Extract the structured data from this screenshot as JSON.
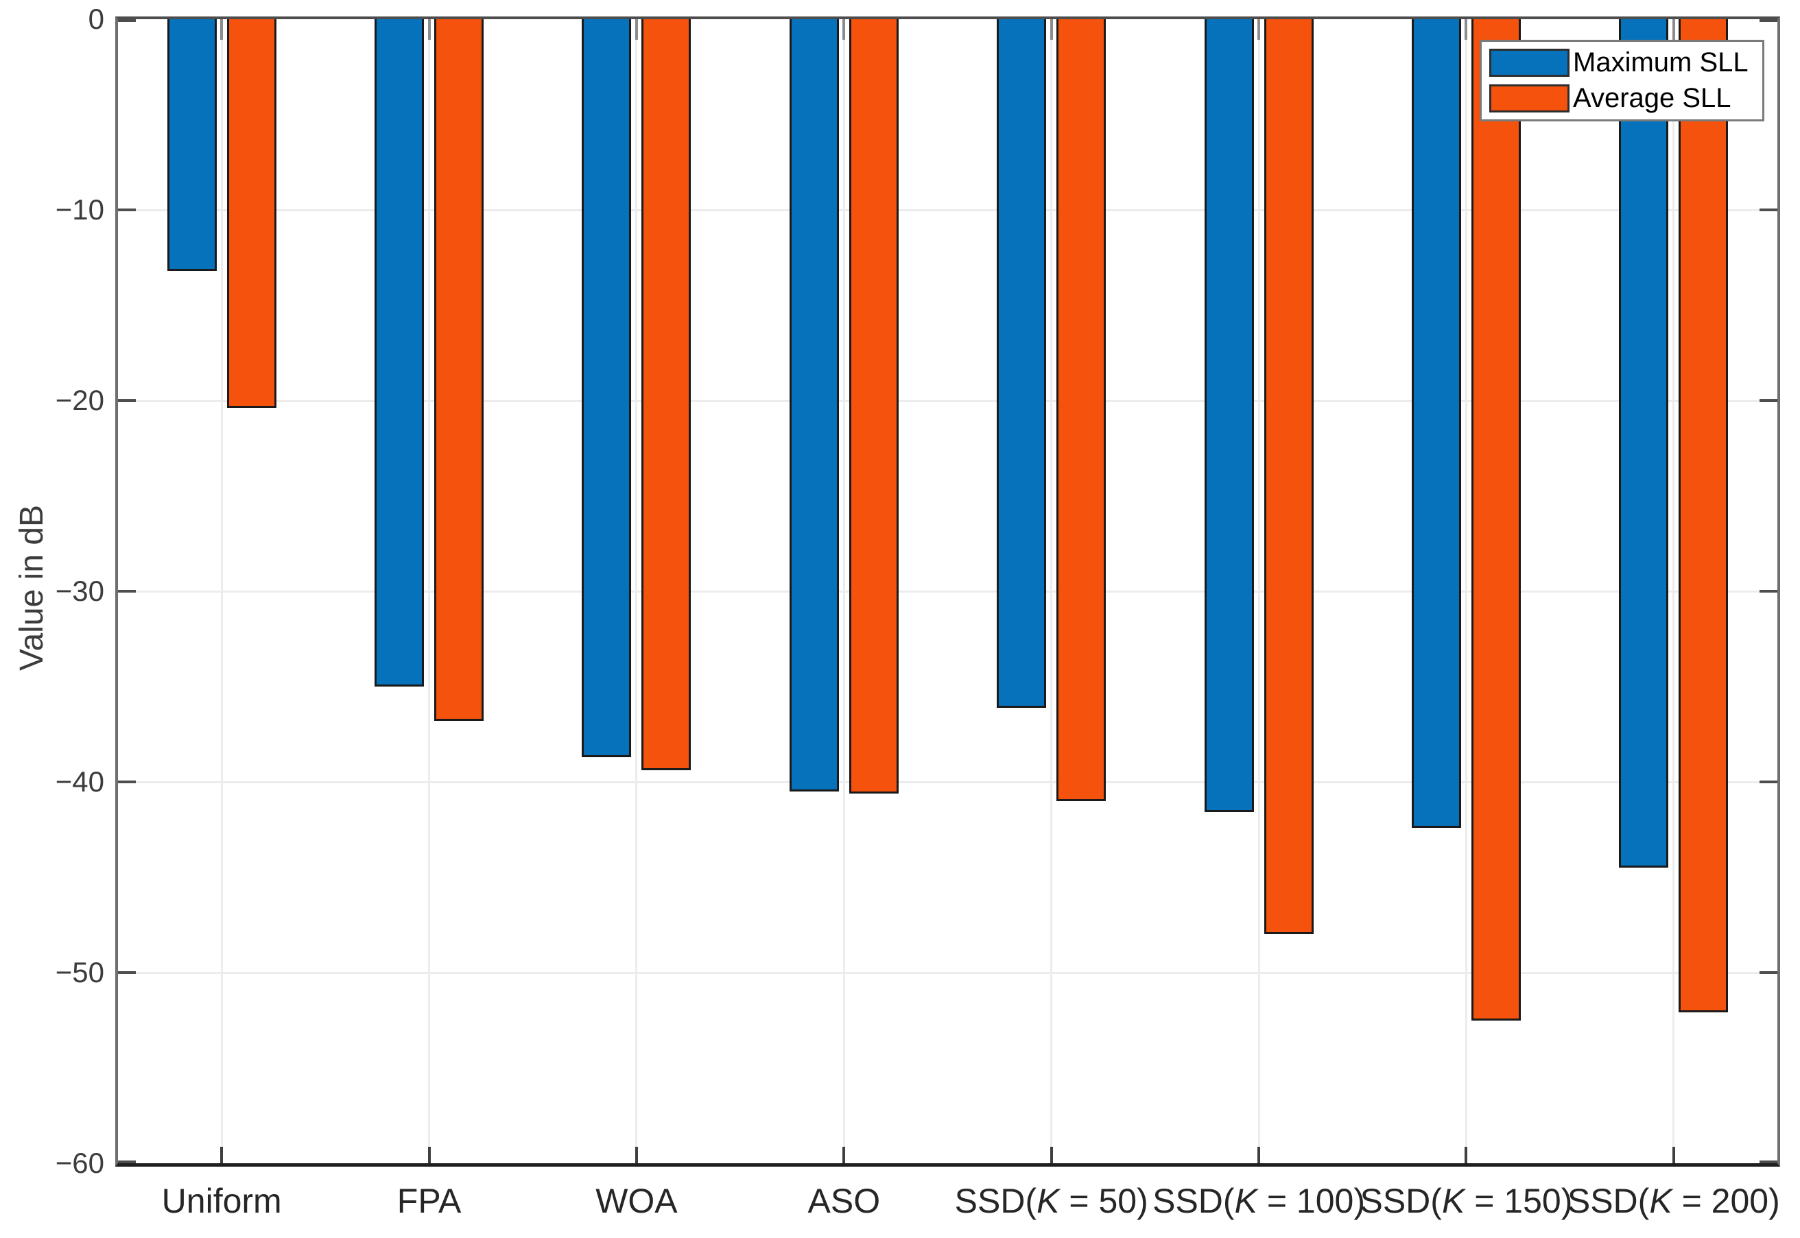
{
  "figure": {
    "background": "#ffffff"
  },
  "chart_data": {
    "type": "bar",
    "title": "",
    "xlabel": "",
    "ylabel": "Value in dB",
    "categories": [
      "Uniform",
      "FPA",
      "WOA",
      "ASO",
      "SSD(K = 50)",
      "SSD(K = 100)",
      "SSD(K = 150)",
      "SSD(K = 200)"
    ],
    "series": [
      {
        "name": "Maximum SLL",
        "color": "#0672bc",
        "values": [
          -13.2,
          -35.0,
          -38.7,
          -40.5,
          -36.1,
          -41.6,
          -42.4,
          -44.5
        ]
      },
      {
        "name": "Average SLL",
        "color": "#f4520d",
        "values": [
          -20.4,
          -36.8,
          -39.4,
          -40.6,
          -41.0,
          -48.0,
          -52.5,
          -52.1
        ]
      }
    ],
    "ylim": [
      -60,
      0
    ],
    "ytick_values": [
      0,
      -10,
      -20,
      -30,
      -40,
      -50,
      -60
    ],
    "ytick_labels": [
      "0",
      "−10",
      "−20",
      "−30",
      "−40",
      "−50",
      "−60"
    ],
    "grid": true,
    "legend_position": "top-right",
    "italic_k_in_labels": true,
    "bar_edge_color": "#1a1a1a"
  }
}
